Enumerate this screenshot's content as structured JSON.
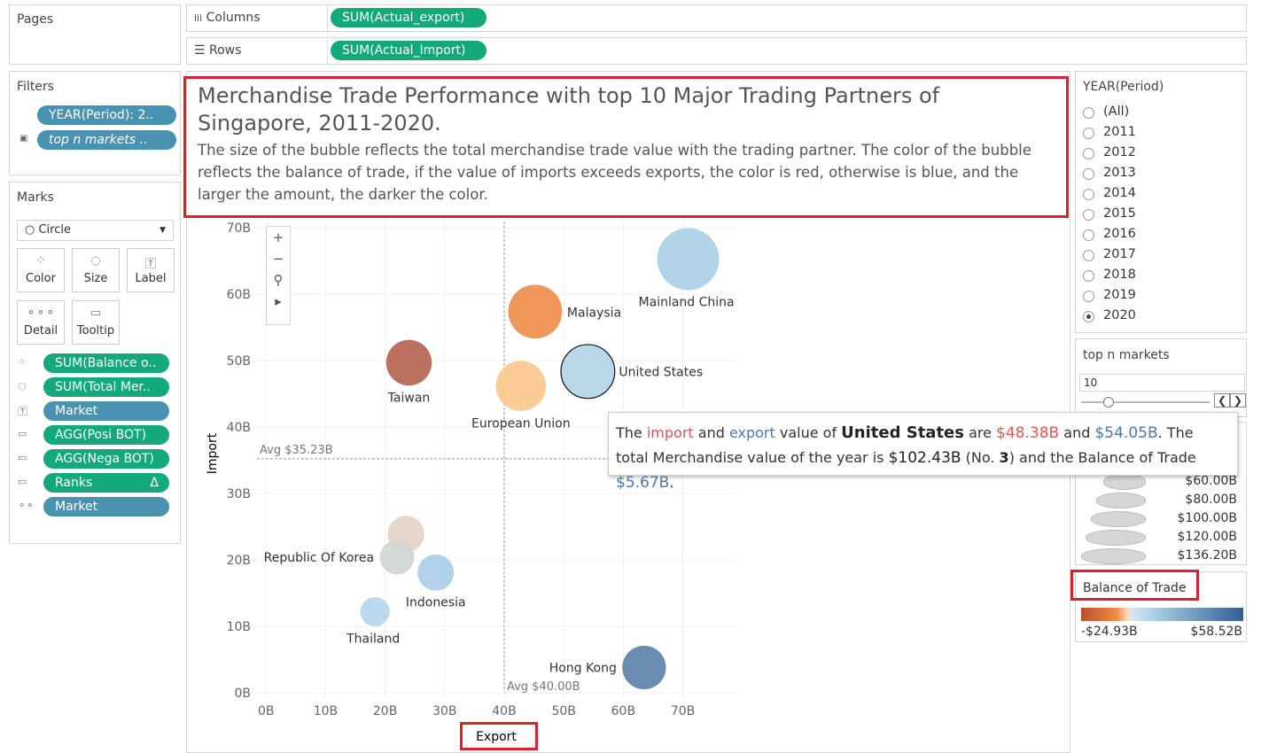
{
  "pages": {
    "title": "Pages"
  },
  "columns": {
    "label": "Columns",
    "pill": "SUM(Actual_export)"
  },
  "rows": {
    "label": "Rows",
    "pill": "SUM(Actual_Import)"
  },
  "filters": {
    "title": "Filters",
    "pills": [
      "YEAR(Period): 2..",
      "top n markets .."
    ]
  },
  "marks": {
    "title": "Marks",
    "mark_type": "Circle",
    "buttons": [
      "Color",
      "Size",
      "Label",
      "Detail",
      "Tooltip"
    ],
    "pills": [
      "SUM(Balance o..",
      "SUM(Total Mer..",
      "Market",
      "AGG(Posi BOT)",
      "AGG(Nega BOT)",
      "Ranks",
      "Market"
    ]
  },
  "year_filter": {
    "title": "YEAR(Period)",
    "options": [
      "(All)",
      "2011",
      "2012",
      "2013",
      "2014",
      "2015",
      "2016",
      "2017",
      "2018",
      "2019",
      "2020"
    ],
    "selected": 10
  },
  "top_n": {
    "title": "top n markets",
    "value": "10"
  },
  "size_legend": {
    "labels": [
      "$60.00B",
      "$80.00B",
      "$100.00B",
      "$120.00B",
      "$136.20B"
    ]
  },
  "color_legend": {
    "title": "Balance of Trade",
    "min_label": "-$24.93B",
    "max_label": "$58.52B"
  },
  "chart_data": {
    "type": "scatter",
    "title": "Merchandise Trade Performance with top 10 Major Trading Partners of Singapore, 2011-2020.",
    "subtitle": "The size of the bubble reflects the total merchandise trade value with the trading partner. The color of the bubble reflects the balance of trade, if the value of imports exceeds exports, the color is red, otherwise is blue, and the larger the amount, the darker the color.",
    "x_label": "Export",
    "y_label": "Import",
    "categories": [
      "Mainland China",
      "Malaysia",
      "United States",
      "Taiwan",
      "European Union",
      null,
      "Republic Of Korea",
      "Indonesia",
      "Thailand",
      "Hong Kong"
    ],
    "x": [
      70.9,
      45.2,
      54.05,
      24.0,
      42.8,
      23.5,
      22.0,
      28.5,
      18.3,
      63.5
    ],
    "values": [
      65.3,
      57.4,
      48.38,
      49.7,
      46.2,
      23.9,
      20.4,
      18.1,
      12.2,
      3.8
    ],
    "sizes": [
      136.2,
      102.6,
      102.43,
      73.7,
      89.0,
      47.4,
      42.4,
      46.6,
      30.5,
      67.3
    ],
    "colors": [
      "#a9cfe6",
      "#ee8c4a",
      "#b1d4e8",
      "#b5624f",
      "#fbc78a",
      "#e2d4c4",
      "#d2d6d3",
      "#a8cde6",
      "#b4d5ea",
      "#5a80a8"
    ],
    "xlim": [
      -4.5,
      79
    ],
    "ylim": [
      -2,
      71.5
    ],
    "xticks": [
      {
        "value": 0,
        "label": "0B"
      },
      {
        "value": 10,
        "label": "10B"
      },
      {
        "value": 20,
        "label": "20B"
      },
      {
        "value": 30,
        "label": "30B"
      },
      {
        "value": 40,
        "label": "40B"
      },
      {
        "value": 50,
        "label": "50B"
      },
      {
        "value": 60,
        "label": "60B"
      },
      {
        "value": 70,
        "label": "70B"
      }
    ],
    "yticks": [
      {
        "value": 0,
        "label": "0B"
      },
      {
        "value": 10,
        "label": "10B"
      },
      {
        "value": 20,
        "label": "20B"
      },
      {
        "value": 30,
        "label": "30B"
      },
      {
        "value": 40,
        "label": "40B"
      },
      {
        "value": 50,
        "label": "50B"
      },
      {
        "value": 60,
        "label": "60B"
      },
      {
        "value": 70,
        "label": "70B"
      }
    ],
    "grid": true,
    "reference_lines": [
      {
        "axis": "y",
        "value": 35.23,
        "label": "Avg $35.23B"
      },
      {
        "axis": "x",
        "value": 40.0,
        "label": "Avg $40.00B"
      }
    ]
  },
  "tooltip": {
    "parts": [
      "The ",
      "import",
      " and ",
      "export",
      " value of ",
      "United States",
      " are ",
      "$48.38B",
      " and ",
      "$54.05B",
      ". The total Merchandise value of the year is ",
      "$102.43B",
      " (No. ",
      "3",
      ") and the Balance of Trade ",
      "$5.67B",
      "."
    ]
  }
}
